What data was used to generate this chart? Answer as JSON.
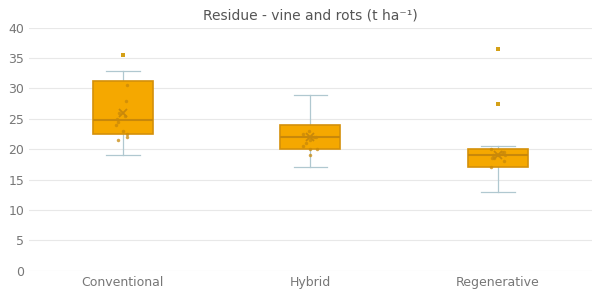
{
  "title": "Residue - vine and rots (t ha⁻¹)",
  "categories": [
    "Conventional",
    "Hybrid",
    "Regenerative"
  ],
  "box_color": "#F5A800",
  "box_edge_color": "#D4900A",
  "whisker_color": "#b0c8d0",
  "median_color": "#C8880A",
  "mean_color": "#C8880A",
  "flier_color": "#D4A017",
  "jitter_color": "#C8880A",
  "ylim": [
    0,
    40
  ],
  "yticks": [
    0,
    5,
    10,
    15,
    20,
    25,
    30,
    35,
    40
  ],
  "bg_color": "#ffffff",
  "grid_color": "#e8e8e8",
  "box_width": 0.32,
  "conventional": {
    "q1": 22.5,
    "median": 24.8,
    "q3": 31.2,
    "whisker_low": 19.0,
    "whisker_high": 32.8,
    "mean": 26.0,
    "outliers": [
      35.5
    ],
    "jitter": [
      30.5,
      24.0,
      25.5,
      22.5,
      23.0,
      26.0,
      21.5,
      22.0,
      24.5,
      25.0,
      28.0
    ]
  },
  "hybrid": {
    "q1": 20.0,
    "median": 22.0,
    "q3": 24.0,
    "whisker_low": 17.0,
    "whisker_high": 29.0,
    "mean": 22.0,
    "outliers": [],
    "jitter": [
      21.0,
      22.5,
      20.0,
      22.0,
      23.0,
      21.5,
      20.5,
      19.0,
      20.0,
      22.0
    ]
  },
  "regenerative": {
    "q1": 17.0,
    "median": 19.0,
    "q3": 20.0,
    "whisker_low": 13.0,
    "whisker_high": 20.5,
    "mean": 19.0,
    "outliers": [
      36.5,
      27.5
    ],
    "jitter": [
      19.0,
      19.5,
      18.5,
      19.0,
      20.0,
      18.0,
      19.5,
      17.0,
      19.0,
      18.5
    ]
  }
}
